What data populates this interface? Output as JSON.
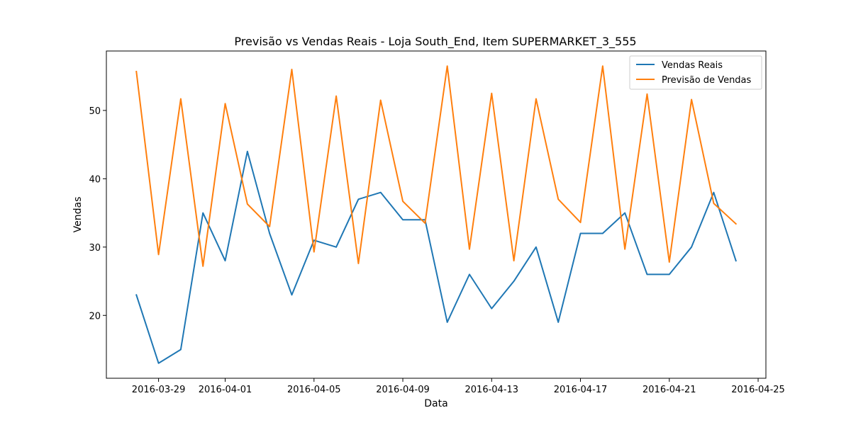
{
  "chart_data": {
    "type": "line",
    "title": "Previsão vs Vendas Reais - Loja South_End, Item SUPERMARKET_3_555",
    "xlabel": "Data",
    "ylabel": "Vendas",
    "x": [
      "2016-03-28",
      "2016-03-29",
      "2016-03-30",
      "2016-03-31",
      "2016-04-01",
      "2016-04-02",
      "2016-04-03",
      "2016-04-04",
      "2016-04-05",
      "2016-04-06",
      "2016-04-07",
      "2016-04-08",
      "2016-04-09",
      "2016-04-10",
      "2016-04-11",
      "2016-04-12",
      "2016-04-13",
      "2016-04-14",
      "2016-04-15",
      "2016-04-16",
      "2016-04-17",
      "2016-04-18",
      "2016-04-19",
      "2016-04-20",
      "2016-04-21",
      "2016-04-22",
      "2016-04-23",
      "2016-04-24"
    ],
    "x_ticks": [
      "2016-03-29",
      "2016-04-01",
      "2016-04-05",
      "2016-04-09",
      "2016-04-13",
      "2016-04-17",
      "2016-04-21",
      "2016-04-25"
    ],
    "y_ticks": [
      20,
      30,
      40,
      50
    ],
    "ylim": [
      10.8,
      58.7
    ],
    "xlim": [
      "2016-03-26.65",
      "2016-04-25.35"
    ],
    "grid": false,
    "legend_position": "top-right",
    "series": [
      {
        "name": "Vendas Reais",
        "color": "#1f77b4",
        "values": [
          23,
          13,
          15,
          35,
          28,
          44,
          32,
          23,
          31,
          30,
          37,
          38,
          34,
          34,
          19,
          26,
          21,
          25,
          30,
          19,
          32,
          32,
          35,
          26,
          26,
          30,
          38,
          28
        ]
      },
      {
        "name": "Previsão de Vendas",
        "color": "#ff7f0e",
        "values": [
          55.7,
          28.9,
          51.7,
          27.2,
          51.0,
          36.3,
          33.0,
          56.0,
          29.3,
          52.1,
          27.6,
          51.5,
          36.7,
          33.5,
          56.5,
          29.7,
          52.5,
          28.0,
          51.7,
          37.0,
          33.6,
          56.5,
          29.7,
          52.4,
          27.8,
          51.6,
          36.4,
          33.4
        ]
      }
    ]
  }
}
